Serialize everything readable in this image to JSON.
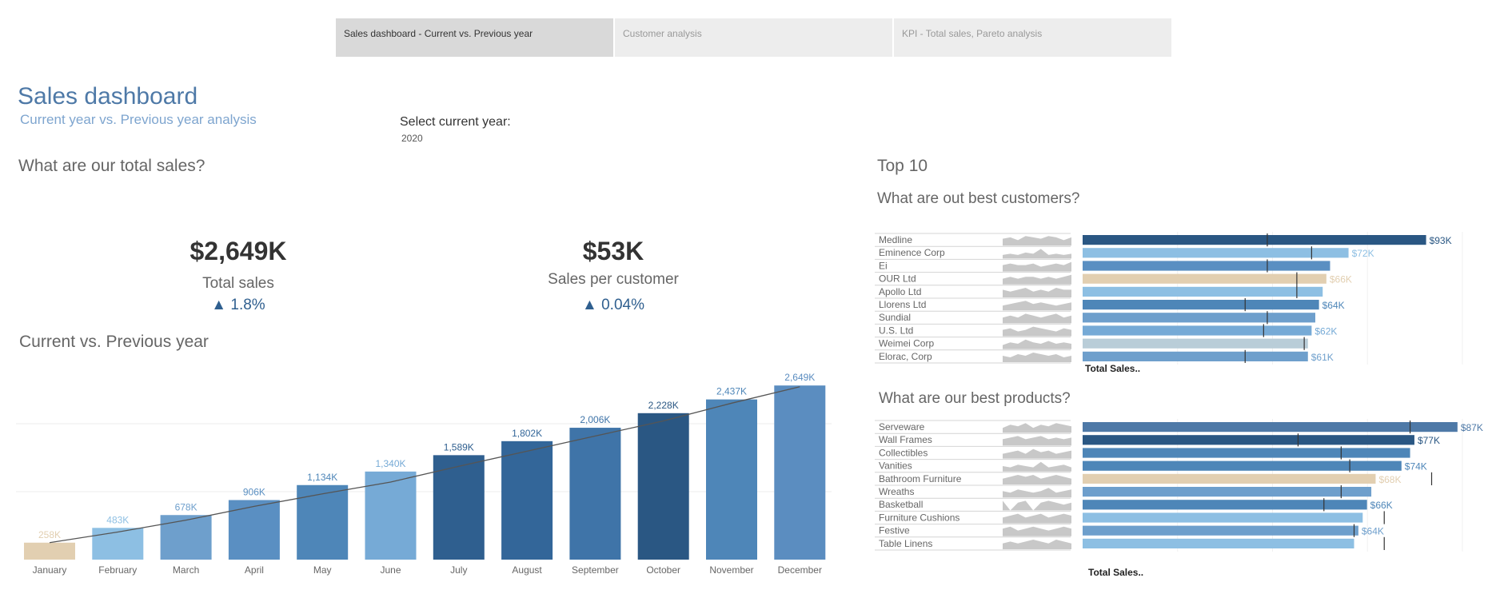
{
  "tabs": [
    {
      "label": "Sales dashboard - Current vs. Previous year",
      "active": true
    },
    {
      "label": "Customer analysis",
      "active": false
    },
    {
      "label": "KPI - Total sales, Pareto analysis",
      "active": false
    }
  ],
  "header": {
    "title": "Sales dashboard",
    "subtitle": "Current year vs. Previous year analysis"
  },
  "year_filter": {
    "label": "Select current year:",
    "value": "2020"
  },
  "total_section": {
    "heading": "What are our total sales?"
  },
  "kpis": {
    "total_sales": {
      "value": "$2,649K",
      "label": "Total sales",
      "change": "▲ 1.8%"
    },
    "sales_per_customer": {
      "value": "$53K",
      "label": "Sales per customer",
      "change": "▲ 0.04%"
    }
  },
  "trend": {
    "heading": "Current vs. Previous year"
  },
  "top10": {
    "heading": "Top 10",
    "customers_heading": "What are out best customers?",
    "products_heading": "What are our best products?",
    "axis_title": "Total Sales.."
  },
  "colors": {
    "accent": "#4e79a7",
    "highlight": "#e2cfb1",
    "dark": "#2a5783",
    "mid": "#4e86b8",
    "light": "#8dbfe3",
    "gray": "#c8c8c8"
  },
  "chart_data": [
    {
      "type": "bar",
      "title": "Current vs. Previous year",
      "categories": [
        "January",
        "February",
        "March",
        "April",
        "May",
        "June",
        "July",
        "August",
        "September",
        "October",
        "November",
        "December"
      ],
      "series": [
        {
          "values": [
            258,
            483,
            678,
            906,
            1134,
            1340,
            1589,
            1802,
            2006,
            2228,
            2437,
            2649
          ]
        }
      ],
      "data_labels": [
        "258K",
        "483K",
        "678K",
        "906K",
        "1,134K",
        "1,340K",
        "1,589K",
        "1,802K",
        "2,006K",
        "2,228K",
        "2,437K",
        "2,649K"
      ],
      "line_values": [
        258,
        420,
        600,
        810,
        1000,
        1180,
        1420,
        1650,
        1880,
        2110,
        2380,
        2630
      ],
      "colors": [
        "#e2cfb1",
        "#8dbfe3",
        "#6e9fcc",
        "#5a8fc2",
        "#4e86b8",
        "#76aad6",
        "#2f5f8f",
        "#336699",
        "#3f74a8",
        "#2a5783",
        "#4e86b8",
        "#5b8dc0"
      ],
      "label_colors": [
        "#e2cfb1",
        "#8dbfe3",
        "#6e9fcc",
        "#5a8fc2",
        "#4e86b8",
        "#76aad6",
        "#2f5f8f",
        "#336699",
        "#3f74a8",
        "#2a5783",
        "#4e86b8",
        "#5b8dc0"
      ],
      "ylim": [
        0,
        2700
      ]
    },
    {
      "type": "bar",
      "title": "What are out best customers?",
      "categories": [
        "Medline",
        "Eminence Corp",
        "Ei",
        "OUR Ltd",
        "Apollo Ltd",
        "Llorens Ltd",
        "Sundial",
        "U.S. Ltd",
        "Weimei Corp",
        "Elorac, Corp"
      ],
      "values": [
        93,
        72,
        67,
        66,
        65,
        64,
        63,
        62,
        61,
        61
      ],
      "data_labels": [
        "$93K",
        "$72K",
        "",
        "$66K",
        "",
        "$64K",
        "",
        "$62K",
        "",
        "$61K"
      ],
      "previous_year": [
        50,
        62,
        50,
        58,
        58,
        44,
        50,
        49,
        60,
        44
      ],
      "colors": [
        "#2a5783",
        "#8dbfe3",
        "#5a8fc2",
        "#e2cfb1",
        "#8dbfe3",
        "#4e86b8",
        "#6e9fcc",
        "#76aad6",
        "#b9cdd8",
        "#6e9fcc"
      ],
      "xlim": [
        0,
        105
      ],
      "sparklines": [
        [
          5,
          6,
          4,
          7,
          6,
          5,
          7,
          6,
          4,
          6
        ],
        [
          3,
          4,
          3,
          5,
          4,
          8,
          3,
          4,
          3,
          4
        ],
        [
          4,
          5,
          4,
          4,
          5,
          3,
          4,
          5,
          4,
          6
        ],
        [
          3,
          4,
          3,
          4,
          4,
          3,
          4,
          3,
          4,
          5
        ],
        [
          4,
          3,
          4,
          5,
          3,
          4,
          3,
          5,
          4,
          4
        ],
        [
          3,
          4,
          5,
          6,
          4,
          5,
          4,
          3,
          4,
          5
        ],
        [
          3,
          4,
          3,
          5,
          4,
          3,
          4,
          5,
          3,
          4
        ],
        [
          4,
          5,
          3,
          4,
          6,
          5,
          4,
          3,
          5,
          4
        ],
        [
          3,
          5,
          4,
          7,
          5,
          4,
          6,
          4,
          5,
          4
        ],
        [
          4,
          3,
          5,
          4,
          6,
          5,
          4,
          5,
          3,
          4
        ]
      ]
    },
    {
      "type": "bar",
      "title": "What are our best products?",
      "categories": [
        "Serveware",
        "Wall Frames",
        "Collectibles",
        "Vanities",
        "Bathroom Furniture",
        "Wreaths",
        "Basketball",
        "Furniture Cushions",
        "Festive",
        "Table Linens"
      ],
      "values": [
        87,
        77,
        76,
        74,
        68,
        67,
        66,
        65,
        64,
        63
      ],
      "data_labels": [
        "$87K",
        "$77K",
        "",
        "$74K",
        "$68K",
        "",
        "$66K",
        "",
        "$64K",
        ""
      ],
      "previous_year": [
        76,
        50,
        60,
        62,
        81,
        60,
        56,
        70,
        63,
        70
      ],
      "colors": [
        "#4e79a7",
        "#2a5783",
        "#4e86b8",
        "#4e86b8",
        "#e2cfb1",
        "#6e9fcc",
        "#4e86b8",
        "#8dbfe3",
        "#6e9fcc",
        "#8dbfe3"
      ],
      "xlim": [
        0,
        90
      ],
      "sparklines": [
        [
          3,
          5,
          4,
          6,
          3,
          5,
          4,
          6,
          5,
          4
        ],
        [
          4,
          5,
          6,
          4,
          5,
          6,
          4,
          5,
          4,
          5
        ],
        [
          3,
          4,
          5,
          3,
          6,
          4,
          5,
          3,
          4,
          5
        ],
        [
          4,
          3,
          5,
          4,
          3,
          7,
          3,
          4,
          5,
          3
        ],
        [
          3,
          4,
          5,
          4,
          5,
          3,
          4,
          5,
          4,
          3
        ],
        [
          4,
          3,
          5,
          4,
          3,
          4,
          6,
          3,
          4,
          5
        ],
        [
          5,
          0,
          4,
          5,
          0,
          4,
          5,
          4,
          3,
          4
        ],
        [
          3,
          4,
          5,
          3,
          4,
          5,
          3,
          4,
          5,
          4
        ],
        [
          4,
          5,
          3,
          4,
          5,
          4,
          3,
          4,
          5,
          4
        ],
        [
          3,
          4,
          3,
          4,
          5,
          4,
          3,
          5,
          4,
          3
        ]
      ]
    }
  ]
}
